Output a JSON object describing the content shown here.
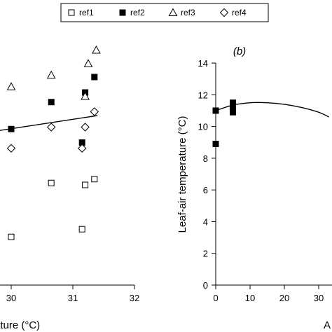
{
  "legend": {
    "entries": [
      {
        "label": "ref1",
        "marker": "open-square"
      },
      {
        "label": "ref2",
        "marker": "filled-square"
      },
      {
        "label": "ref3",
        "marker": "open-triangle"
      },
      {
        "label": "ref4",
        "marker": "open-diamond"
      }
    ]
  },
  "chart_data": [
    {
      "type": "scatter",
      "panel": "a",
      "title": "",
      "xlabel_visible_fragment": "ature (°C)",
      "ylabel": "",
      "xlim": [
        29.35,
        32
      ],
      "ylim": [
        2,
        14
      ],
      "x_ticks": [
        "30",
        "31",
        "32"
      ],
      "grid": false,
      "series": [
        {
          "name": "ref1",
          "marker": "open-square",
          "x": [
            30.0,
            30.65,
            31.15,
            31.2,
            31.35
          ],
          "y": [
            4.5,
            7.3,
            4.9,
            7.2,
            7.5
          ]
        },
        {
          "name": "ref2",
          "marker": "filled-square",
          "x": [
            30.0,
            30.65,
            31.15,
            31.2,
            31.35
          ],
          "y": [
            10.1,
            11.5,
            9.4,
            12.0,
            12.8
          ]
        },
        {
          "name": "ref3",
          "marker": "open-triangle",
          "x": [
            30.0,
            30.65,
            31.2,
            31.25,
            31.38
          ],
          "y": [
            12.3,
            12.9,
            11.8,
            13.5,
            14.2
          ]
        },
        {
          "name": "ref4",
          "marker": "open-diamond",
          "x": [
            30.0,
            30.65,
            31.15,
            31.2,
            31.35
          ],
          "y": [
            9.1,
            10.2,
            9.1,
            10.2,
            11.0
          ]
        }
      ],
      "trendline": {
        "x": [
          29.35,
          31.4
        ],
        "y": [
          9.8,
          10.8
        ]
      }
    },
    {
      "type": "scatter",
      "panel": "b",
      "title": "(b)",
      "xlabel_visible_fragment": "A",
      "ylabel": "Leaf-air temperature (°C)",
      "xlim": [
        0,
        33
      ],
      "ylim": [
        0,
        14
      ],
      "x_ticks": [
        "0",
        "10",
        "20",
        "30"
      ],
      "y_ticks": [
        "0",
        "2",
        "4",
        "6",
        "8",
        "10",
        "12",
        "14"
      ],
      "grid": false,
      "series": [
        {
          "name": "ref2",
          "marker": "filled-square",
          "x": [
            0,
            0,
            5,
            5,
            5,
            5
          ],
          "y": [
            8.9,
            11.0,
            10.9,
            11.1,
            11.3,
            11.5
          ]
        }
      ],
      "curve": {
        "x": [
          0,
          5,
          10,
          15,
          20,
          25,
          30,
          33
        ],
        "y": [
          11.0,
          11.35,
          11.5,
          11.5,
          11.4,
          11.2,
          10.9,
          10.6
        ]
      }
    }
  ]
}
